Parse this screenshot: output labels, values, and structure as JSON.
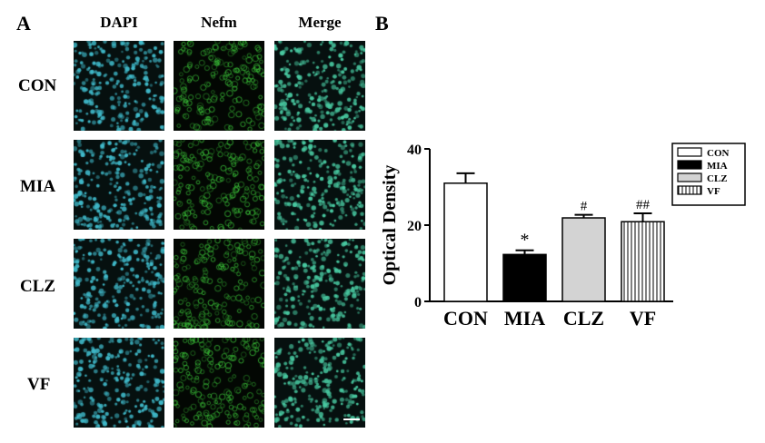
{
  "panel_a": {
    "letter": "A",
    "columns": [
      "DAPI",
      "Nefm",
      "Merge"
    ],
    "rows": [
      "CON",
      "MIA",
      "CLZ",
      "VF"
    ],
    "channel_colors": {
      "dapi": "#3fb8c8",
      "nefm": "#3cc83a",
      "merge": "#48c8a0"
    }
  },
  "panel_b": {
    "letter": "B"
  },
  "chart_data": {
    "type": "bar",
    "categories": [
      "CON",
      "MIA",
      "CLZ",
      "VF"
    ],
    "values": [
      31,
      12.3,
      21.9,
      20.9
    ],
    "errors": [
      2.6,
      1.1,
      0.8,
      2.2
    ],
    "significance": [
      "",
      "*",
      "#",
      "##"
    ],
    "ylabel": "Optical Density",
    "xlabel": "",
    "ylim": [
      0,
      40
    ],
    "yticks": [
      0,
      20,
      40
    ],
    "fills": [
      "white",
      "black",
      "lightgray",
      "vertical-stripes"
    ],
    "legend": {
      "placement": "top-right",
      "entries": [
        "CON",
        "MIA",
        "CLZ",
        "VF"
      ]
    },
    "colors": {
      "lightgray": "#d3d3d3",
      "black": "#000000"
    }
  }
}
